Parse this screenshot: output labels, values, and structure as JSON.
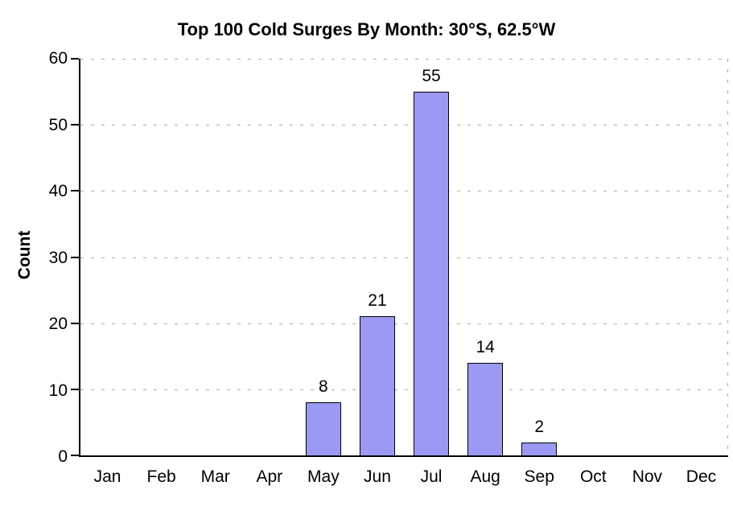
{
  "chart_data": {
    "type": "bar",
    "title": "Top 100 Cold Surges By Month: 30°S, 62.5°W",
    "ylabel": "Count",
    "xlabel": "",
    "categories": [
      "Jan",
      "Feb",
      "Mar",
      "Apr",
      "May",
      "Jun",
      "Jul",
      "Aug",
      "Sep",
      "Oct",
      "Nov",
      "Dec"
    ],
    "values": [
      0,
      0,
      0,
      0,
      8,
      21,
      55,
      14,
      2,
      0,
      0,
      0
    ],
    "bar_value_labels": [
      "",
      "",
      "",
      "",
      "8",
      "21",
      "55",
      "14",
      "2",
      "",
      "",
      ""
    ],
    "ylim": [
      0,
      60
    ],
    "yticks": [
      0,
      10,
      20,
      30,
      40,
      50,
      60
    ],
    "grid": "horizontal-dashed",
    "legend": "none",
    "colors": {
      "bar_fill": "#9a9af5",
      "bar_border": "#000000",
      "gridline": "#ababab",
      "axis": "#000000",
      "background": "#ffffff",
      "text": "#000000"
    }
  }
}
